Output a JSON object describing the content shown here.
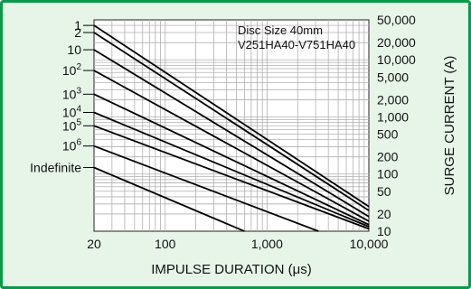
{
  "colors": {
    "frame": "#0a9a4a",
    "panel": "#e7f5e9",
    "plot_bg": "#ffffff",
    "grid": "#b0b0b0",
    "curve": "#000000",
    "text": "#111111"
  },
  "chart_data": {
    "type": "line",
    "title": "",
    "xlabel": "IMPULSE DURATION (μs)",
    "ylabel": "SURGE CURRENT (A)",
    "x_scale": "log",
    "y_scale": "log",
    "xlim": [
      20,
      10000
    ],
    "ylim": [
      10,
      50000
    ],
    "x_ticks": [
      {
        "value": 20,
        "label": "20"
      },
      {
        "value": 100,
        "label": "100"
      },
      {
        "value": 1000,
        "label": "1,000"
      },
      {
        "value": 10000,
        "label": "10,000"
      }
    ],
    "y_ticks": [
      {
        "value": 50000,
        "label": "50,000"
      },
      {
        "value": 20000,
        "label": "20,000"
      },
      {
        "value": 10000,
        "label": "10,000"
      },
      {
        "value": 5000,
        "label": "5,000"
      },
      {
        "value": 2000,
        "label": "2,000"
      },
      {
        "value": 1000,
        "label": "1,000"
      },
      {
        "value": 500,
        "label": "500"
      },
      {
        "value": 200,
        "label": "200"
      },
      {
        "value": 100,
        "label": "100"
      },
      {
        "value": 50,
        "label": "50"
      },
      {
        "value": 20,
        "label": "20"
      },
      {
        "value": 10,
        "label": "10"
      }
    ],
    "annotations": [
      "Disc Size 40mm",
      "V251HA40-V751HA40"
    ],
    "grid": true,
    "series": [
      {
        "name": "1",
        "label_main": "1",
        "label_sup": "",
        "x": [
          20,
          10000
        ],
        "y": [
          40000,
          27
        ]
      },
      {
        "name": "2",
        "label_main": "2",
        "label_sup": "",
        "x": [
          20,
          10000
        ],
        "y": [
          30000,
          23
        ]
      },
      {
        "name": "10",
        "label_main": "10",
        "label_sup": "",
        "x": [
          20,
          10000
        ],
        "y": [
          15000,
          18
        ]
      },
      {
        "name": "10^2",
        "label_main": "10",
        "label_sup": "2",
        "x": [
          20,
          10000
        ],
        "y": [
          6500,
          15
        ]
      },
      {
        "name": "10^3",
        "label_main": "10",
        "label_sup": "3",
        "x": [
          20,
          10000
        ],
        "y": [
          2500,
          13
        ]
      },
      {
        "name": "10^4",
        "label_main": "10",
        "label_sup": "4",
        "x": [
          20,
          10000
        ],
        "y": [
          1200,
          12
        ]
      },
      {
        "name": "10^5",
        "label_main": "10",
        "label_sup": "5",
        "x": [
          20,
          10000
        ],
        "y": [
          700,
          11
        ]
      },
      {
        "name": "10^6",
        "label_main": "10",
        "label_sup": "6",
        "x": [
          20,
          3200
        ],
        "y": [
          310,
          10
        ]
      },
      {
        "name": "Indefinite",
        "label_main": "Indefinite",
        "label_sup": "",
        "x": [
          20,
          600
        ],
        "y": [
          130,
          10
        ]
      }
    ]
  }
}
